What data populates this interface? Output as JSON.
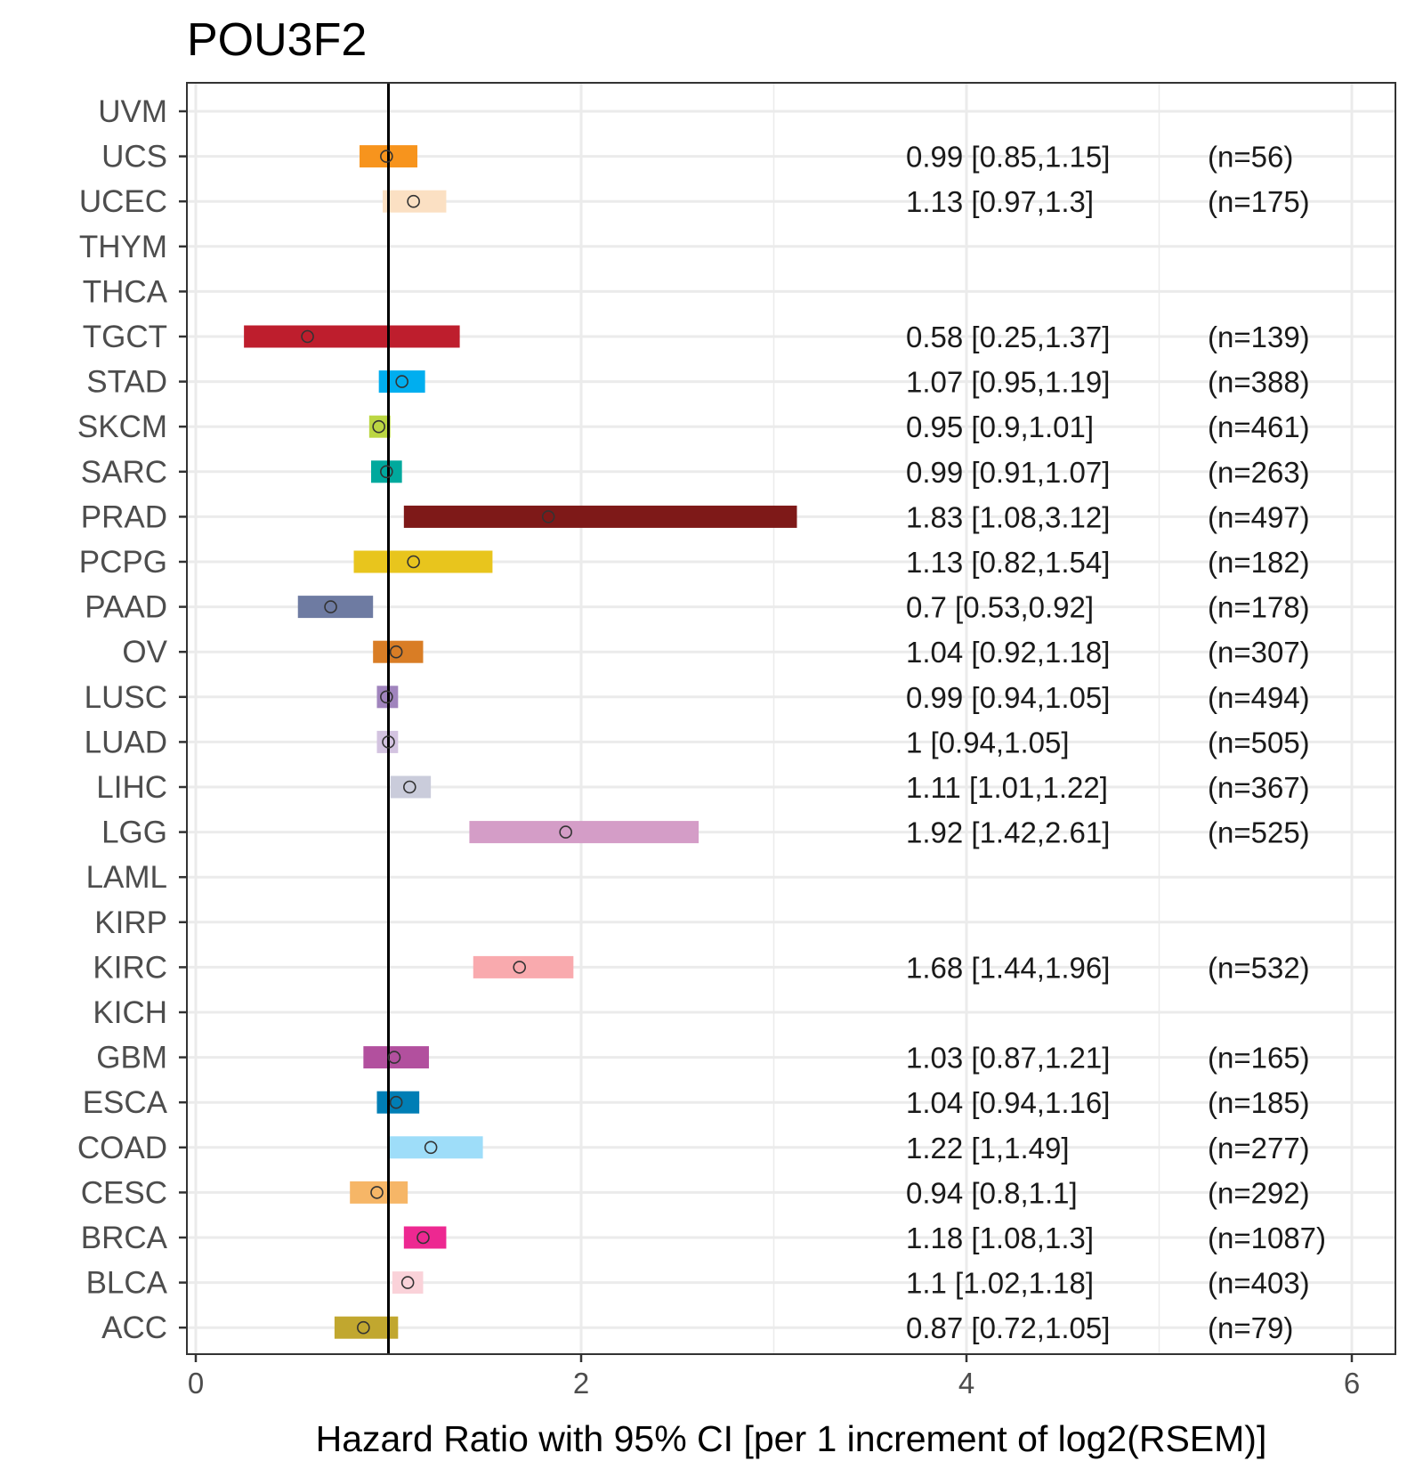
{
  "chart_data": {
    "type": "forest",
    "title": "POU3F2",
    "xlabel": "Hazard Ratio with 95% CI [per 1 increment of log2(RSEM)]",
    "ylabel": "",
    "xlim": [
      -0.05,
      6.3
    ],
    "x_ticks": [
      0,
      2,
      4,
      6
    ],
    "x_tick_labels": [
      "0",
      "2",
      "4",
      "6"
    ],
    "x_minor_gridlines": [
      1,
      3,
      5
    ],
    "reference_line": 1,
    "grid": true,
    "legend": "none",
    "rows": [
      {
        "cancer": "UVM",
        "hr": null,
        "lo": null,
        "hi": null,
        "label": "",
        "n": "",
        "color": ""
      },
      {
        "cancer": "UCS",
        "hr": 0.99,
        "lo": 0.85,
        "hi": 1.15,
        "label": "0.99 [0.85,1.15]",
        "n": "(n=56)",
        "color": "#F7941D"
      },
      {
        "cancer": "UCEC",
        "hr": 1.13,
        "lo": 0.97,
        "hi": 1.3,
        "label": "1.13 [0.97,1.3]",
        "n": "(n=175)",
        "color": "#FBE0C3"
      },
      {
        "cancer": "THYM",
        "hr": null,
        "lo": null,
        "hi": null,
        "label": "",
        "n": "",
        "color": ""
      },
      {
        "cancer": "THCA",
        "hr": null,
        "lo": null,
        "hi": null,
        "label": "",
        "n": "",
        "color": ""
      },
      {
        "cancer": "TGCT",
        "hr": 0.58,
        "lo": 0.25,
        "hi": 1.37,
        "label": "0.58 [0.25,1.37]",
        "n": "(n=139)",
        "color": "#BE1E2D"
      },
      {
        "cancer": "STAD",
        "hr": 1.07,
        "lo": 0.95,
        "hi": 1.19,
        "label": "1.07 [0.95,1.19]",
        "n": "(n=388)",
        "color": "#00AEEF"
      },
      {
        "cancer": "SKCM",
        "hr": 0.95,
        "lo": 0.9,
        "hi": 1.01,
        "label": "0.95 [0.9,1.01]",
        "n": "(n=461)",
        "color": "#BBD642"
      },
      {
        "cancer": "SARC",
        "hr": 0.99,
        "lo": 0.91,
        "hi": 1.07,
        "label": "0.99 [0.91,1.07]",
        "n": "(n=263)",
        "color": "#00A99D"
      },
      {
        "cancer": "PRAD",
        "hr": 1.83,
        "lo": 1.08,
        "hi": 3.12,
        "label": "1.83 [1.08,3.12]",
        "n": "(n=497)",
        "color": "#7E1918"
      },
      {
        "cancer": "PCPG",
        "hr": 1.13,
        "lo": 0.82,
        "hi": 1.54,
        "label": "1.13 [0.82,1.54]",
        "n": "(n=182)",
        "color": "#E8C51D"
      },
      {
        "cancer": "PAAD",
        "hr": 0.7,
        "lo": 0.53,
        "hi": 0.92,
        "label": "0.7 [0.53,0.92]",
        "n": "(n=178)",
        "color": "#6E7BA2"
      },
      {
        "cancer": "OV",
        "hr": 1.04,
        "lo": 0.92,
        "hi": 1.18,
        "label": "1.04 [0.92,1.18]",
        "n": "(n=307)",
        "color": "#D97D25"
      },
      {
        "cancer": "LUSC",
        "hr": 0.99,
        "lo": 0.94,
        "hi": 1.05,
        "label": "0.99 [0.94,1.05]",
        "n": "(n=494)",
        "color": "#A084BD"
      },
      {
        "cancer": "LUAD",
        "hr": 1,
        "lo": 0.94,
        "hi": 1.05,
        "label": "1 [0.94,1.05]",
        "n": "(n=505)",
        "color": "#D3C3E0"
      },
      {
        "cancer": "LIHC",
        "hr": 1.11,
        "lo": 1.01,
        "hi": 1.22,
        "label": "1.11 [1.01,1.22]",
        "n": "(n=367)",
        "color": "#CACCDB"
      },
      {
        "cancer": "LGG",
        "hr": 1.92,
        "lo": 1.42,
        "hi": 2.61,
        "label": "1.92 [1.42,2.61]",
        "n": "(n=525)",
        "color": "#D49DC7"
      },
      {
        "cancer": "LAML",
        "hr": null,
        "lo": null,
        "hi": null,
        "label": "",
        "n": "",
        "color": ""
      },
      {
        "cancer": "KIRP",
        "hr": null,
        "lo": null,
        "hi": null,
        "label": "",
        "n": "",
        "color": ""
      },
      {
        "cancer": "KIRC",
        "hr": 1.68,
        "lo": 1.44,
        "hi": 1.96,
        "label": "1.68 [1.44,1.96]",
        "n": "(n=532)",
        "color": "#F9AAAE"
      },
      {
        "cancer": "KICH",
        "hr": null,
        "lo": null,
        "hi": null,
        "label": "",
        "n": "",
        "color": ""
      },
      {
        "cancer": "GBM",
        "hr": 1.03,
        "lo": 0.87,
        "hi": 1.21,
        "label": "1.03 [0.87,1.21]",
        "n": "(n=165)",
        "color": "#B2509E"
      },
      {
        "cancer": "ESCA",
        "hr": 1.04,
        "lo": 0.94,
        "hi": 1.16,
        "label": "1.04 [0.94,1.16]",
        "n": "(n=185)",
        "color": "#007EB5"
      },
      {
        "cancer": "COAD",
        "hr": 1.22,
        "lo": 1,
        "hi": 1.49,
        "label": "1.22 [1,1.49]",
        "n": "(n=277)",
        "color": "#9EDDF9"
      },
      {
        "cancer": "CESC",
        "hr": 0.94,
        "lo": 0.8,
        "hi": 1.1,
        "label": "0.94 [0.8,1.1]",
        "n": "(n=292)",
        "color": "#F6B667"
      },
      {
        "cancer": "BRCA",
        "hr": 1.18,
        "lo": 1.08,
        "hi": 1.3,
        "label": "1.18 [1.08,1.3]",
        "n": "(n=1087)",
        "color": "#ED2891"
      },
      {
        "cancer": "BLCA",
        "hr": 1.1,
        "lo": 1.02,
        "hi": 1.18,
        "label": "1.1 [1.02,1.18]",
        "n": "(n=403)",
        "color": "#FAD2D9"
      },
      {
        "cancer": "ACC",
        "hr": 0.87,
        "lo": 0.72,
        "hi": 1.05,
        "label": "0.87 [0.72,1.05]",
        "n": "(n=79)",
        "color": "#C1A72F"
      }
    ]
  }
}
